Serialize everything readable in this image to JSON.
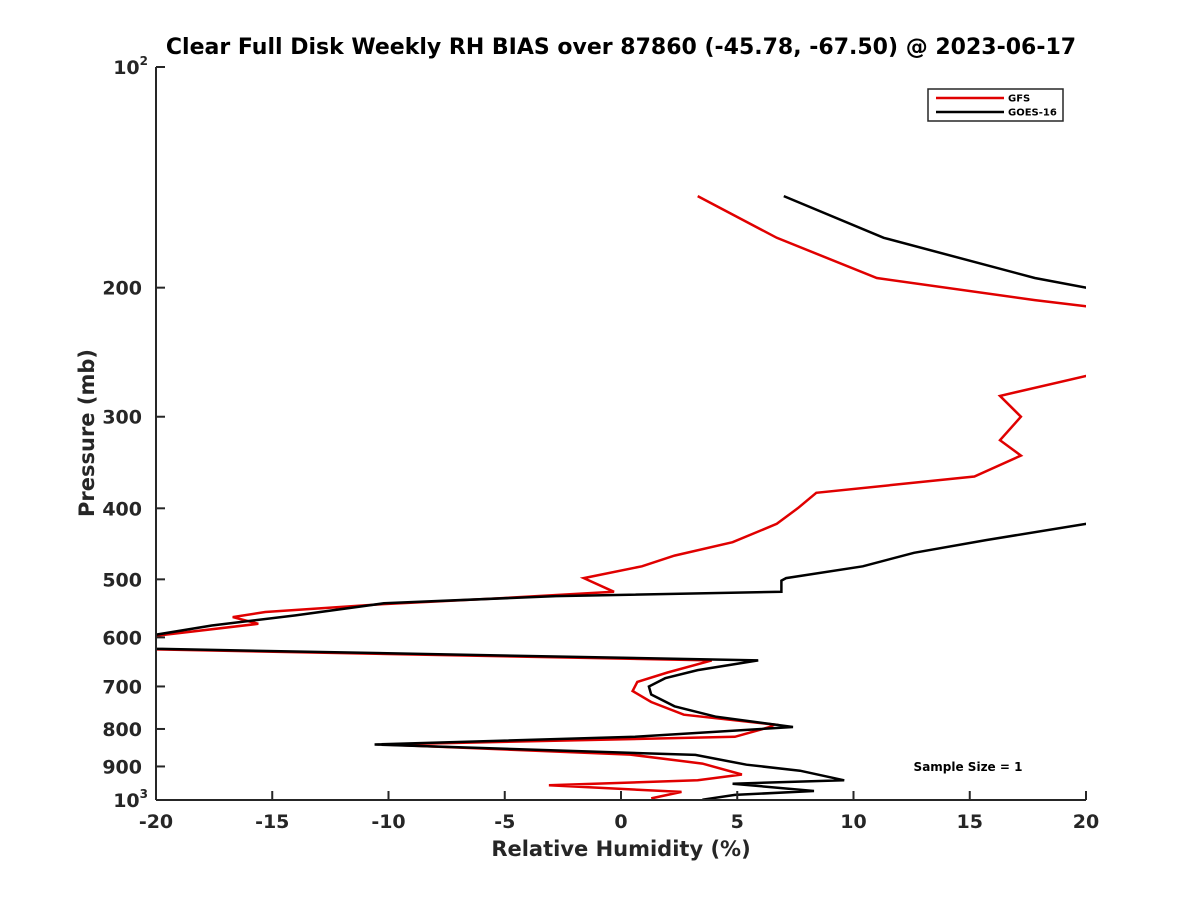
{
  "chart_data": {
    "type": "line",
    "title": "Clear Full Disk Weekly RH BIAS over 87860 (-45.78, -67.50) @ 2023-06-17",
    "xlabel": "Relative Humidity (%)",
    "ylabel": "Pressure (mb)",
    "xlim": [
      -20,
      20
    ],
    "ylim": [
      100,
      1000
    ],
    "y_scale": "log",
    "y_reversed": true,
    "x_ticks": [
      "-20",
      "-15",
      "-10",
      "-5",
      "0",
      "5",
      "10",
      "15",
      "20"
    ],
    "y_ticks": [
      {
        "value": 100,
        "base": "10",
        "exp": "2"
      },
      {
        "value": 200,
        "label": "200"
      },
      {
        "value": 300,
        "label": "300"
      },
      {
        "value": 400,
        "label": "400"
      },
      {
        "value": 500,
        "label": "500"
      },
      {
        "value": 600,
        "label": "600"
      },
      {
        "value": 700,
        "label": "700"
      },
      {
        "value": 800,
        "label": "800"
      },
      {
        "value": 900,
        "label": "900"
      },
      {
        "value": 1000,
        "base": "10",
        "exp": "3"
      }
    ],
    "grid": false,
    "legend_position": "top-right",
    "annotation": "Sample Size = 1",
    "series": [
      {
        "name": "GFS",
        "color": "#e00000",
        "points": [
          [
            3.3,
            150
          ],
          [
            6.7,
            171
          ],
          [
            11.0,
            194
          ],
          [
            17.8,
            208
          ],
          [
            20.0,
            212
          ],
          [
            20.5,
            213
          ],
          [
            20.5,
            262
          ],
          [
            20.0,
            264
          ],
          [
            16.3,
            281
          ],
          [
            17.2,
            300
          ],
          [
            16.3,
            323
          ],
          [
            17.2,
            339
          ],
          [
            15.2,
            362
          ],
          [
            8.4,
            381
          ],
          [
            7.6,
            400
          ],
          [
            6.7,
            420
          ],
          [
            4.8,
            445
          ],
          [
            2.3,
            464
          ],
          [
            0.9,
            480
          ],
          [
            -1.6,
            498
          ],
          [
            -0.3,
            520
          ],
          [
            -5.4,
            531
          ],
          [
            -10.4,
            541
          ],
          [
            -15.3,
            554
          ],
          [
            -16.7,
            563
          ],
          [
            -15.6,
            575
          ],
          [
            -20.0,
            597
          ],
          [
            -20.5,
            599
          ],
          [
            -20.5,
            621
          ],
          [
            -20.0,
            623
          ],
          [
            3.9,
            645
          ],
          [
            2.0,
            670
          ],
          [
            0.7,
            690
          ],
          [
            0.5,
            710
          ],
          [
            1.3,
            735
          ],
          [
            2.7,
            765
          ],
          [
            6.6,
            789
          ],
          [
            6.4,
            795
          ],
          [
            4.9,
            820
          ],
          [
            -10.2,
            840
          ],
          [
            0.4,
            867
          ],
          [
            3.5,
            892
          ],
          [
            5.2,
            923
          ],
          [
            3.3,
            940
          ],
          [
            -3.1,
            955
          ],
          [
            2.6,
            975
          ],
          [
            1.3,
            995
          ]
        ]
      },
      {
        "name": "GOES-16",
        "color": "#000000",
        "points": [
          [
            7.0,
            150
          ],
          [
            11.3,
            171
          ],
          [
            17.8,
            194
          ],
          [
            20.0,
            200
          ],
          [
            20.5,
            201
          ],
          [
            20.5,
            418
          ],
          [
            20.0,
            420
          ],
          [
            15.7,
            442
          ],
          [
            12.6,
            460
          ],
          [
            10.4,
            480
          ],
          [
            7.1,
            498
          ],
          [
            6.9,
            502
          ],
          [
            6.9,
            520
          ],
          [
            -2.8,
            527
          ],
          [
            -10.2,
            539
          ],
          [
            -14.0,
            560
          ],
          [
            -17.6,
            578
          ],
          [
            -20.0,
            595
          ],
          [
            -20.5,
            597
          ],
          [
            -20.5,
            620
          ],
          [
            -20.0,
            622
          ],
          [
            5.9,
            645
          ],
          [
            3.3,
            665
          ],
          [
            1.9,
            682
          ],
          [
            1.2,
            700
          ],
          [
            1.3,
            718
          ],
          [
            2.3,
            745
          ],
          [
            4.1,
            770
          ],
          [
            7.4,
            795
          ],
          [
            0.6,
            820
          ],
          [
            -10.6,
            840
          ],
          [
            3.2,
            868
          ],
          [
            5.4,
            895
          ],
          [
            7.7,
            912
          ],
          [
            9.6,
            940
          ],
          [
            4.8,
            950
          ],
          [
            8.3,
            972
          ],
          [
            4.9,
            984
          ],
          [
            3.5,
            999
          ]
        ]
      }
    ]
  }
}
